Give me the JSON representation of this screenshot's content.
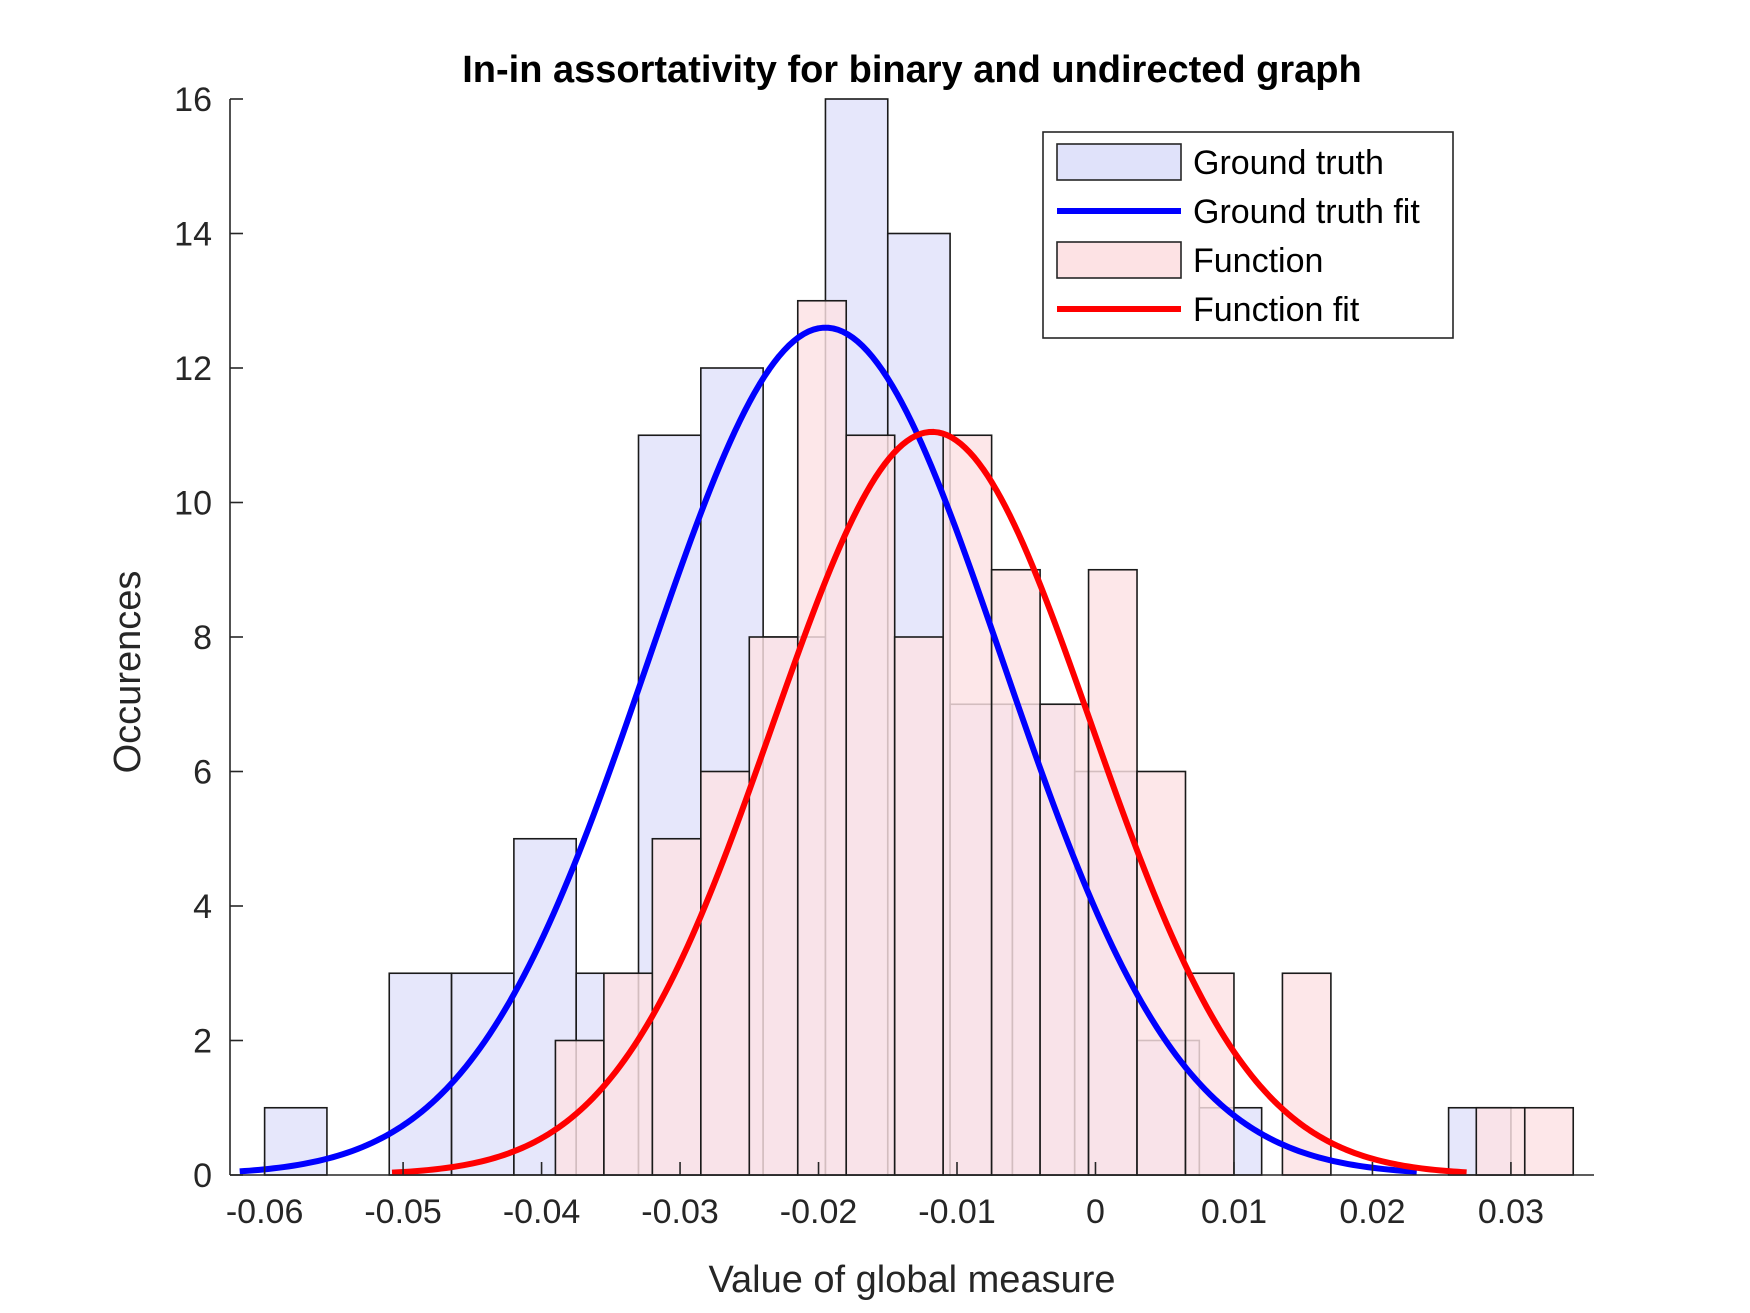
{
  "chart_data": {
    "type": "bar",
    "title": "In-in assortativity for binary and undirected graph",
    "xlabel": "Value of global measure",
    "ylabel": "Occurences",
    "xlim": [
      -0.0625,
      0.036
    ],
    "ylim": [
      0,
      16
    ],
    "xticks": [
      -0.06,
      -0.05,
      -0.04,
      -0.03,
      -0.02,
      -0.01,
      0,
      0.01,
      0.02,
      0.03
    ],
    "xtick_labels": [
      "-0.06",
      "-0.05",
      "-0.04",
      "-0.03",
      "-0.02",
      "-0.01",
      "0",
      "0.01",
      "0.02",
      "0.03"
    ],
    "yticks": [
      0,
      2,
      4,
      6,
      8,
      10,
      12,
      14,
      16
    ],
    "ytick_labels": [
      "0",
      "2",
      "4",
      "6",
      "8",
      "10",
      "12",
      "14",
      "16"
    ],
    "grid": false,
    "legend_position": "top-right",
    "series": [
      {
        "name": "Ground truth",
        "kind": "histogram",
        "color": "#e0e2fa",
        "bins": [
          {
            "x0": -0.06,
            "x1": -0.0555,
            "count": 1
          },
          {
            "x0": -0.051,
            "x1": -0.0465,
            "count": 3
          },
          {
            "x0": -0.0465,
            "x1": -0.042,
            "count": 3
          },
          {
            "x0": -0.042,
            "x1": -0.0375,
            "count": 5
          },
          {
            "x0": -0.0375,
            "x1": -0.033,
            "count": 3
          },
          {
            "x0": -0.033,
            "x1": -0.0285,
            "count": 11
          },
          {
            "x0": -0.0285,
            "x1": -0.024,
            "count": 12
          },
          {
            "x0": -0.024,
            "x1": -0.0195,
            "count": 8
          },
          {
            "x0": -0.0195,
            "x1": -0.015,
            "count": 16
          },
          {
            "x0": -0.015,
            "x1": -0.0105,
            "count": 14
          },
          {
            "x0": -0.0105,
            "x1": -0.006,
            "count": 7
          },
          {
            "x0": -0.006,
            "x1": -0.0015,
            "count": 7
          },
          {
            "x0": -0.0015,
            "x1": 0.003,
            "count": 6
          },
          {
            "x0": 0.003,
            "x1": 0.0075,
            "count": 2
          },
          {
            "x0": 0.0075,
            "x1": 0.012,
            "count": 1
          },
          {
            "x0": 0.0255,
            "x1": 0.03,
            "count": 1
          }
        ]
      },
      {
        "name": "Ground truth fit",
        "kind": "normal-fit",
        "color": "#0000ff",
        "mu": -0.0195,
        "sigma": 0.0128,
        "peak": 12.6,
        "x_range": [
          -0.0618,
          0.0232
        ]
      },
      {
        "name": "Function",
        "kind": "histogram",
        "color": "#fde2e4",
        "bins": [
          {
            "x0": -0.039,
            "x1": -0.0355,
            "count": 2
          },
          {
            "x0": -0.0355,
            "x1": -0.032,
            "count": 3
          },
          {
            "x0": -0.032,
            "x1": -0.0285,
            "count": 5
          },
          {
            "x0": -0.0285,
            "x1": -0.025,
            "count": 6
          },
          {
            "x0": -0.025,
            "x1": -0.0215,
            "count": 8
          },
          {
            "x0": -0.0215,
            "x1": -0.018,
            "count": 13
          },
          {
            "x0": -0.018,
            "x1": -0.0145,
            "count": 11
          },
          {
            "x0": -0.0145,
            "x1": -0.011,
            "count": 8
          },
          {
            "x0": -0.011,
            "x1": -0.0075,
            "count": 11
          },
          {
            "x0": -0.0075,
            "x1": -0.004,
            "count": 9
          },
          {
            "x0": -0.004,
            "x1": -0.0005,
            "count": 7
          },
          {
            "x0": -0.0005,
            "x1": 0.003,
            "count": 9
          },
          {
            "x0": 0.003,
            "x1": 0.0065,
            "count": 6
          },
          {
            "x0": 0.0065,
            "x1": 0.01,
            "count": 3
          },
          {
            "x0": 0.01,
            "x1": 0.0135,
            "count": 0
          },
          {
            "x0": 0.0135,
            "x1": 0.017,
            "count": 3
          },
          {
            "x0": 0.0275,
            "x1": 0.031,
            "count": 1
          },
          {
            "x0": 0.031,
            "x1": 0.0345,
            "count": 1
          }
        ]
      },
      {
        "name": "Function fit",
        "kind": "normal-fit",
        "color": "#ff0000",
        "mu": -0.0118,
        "sigma": 0.0115,
        "peak": 11.05,
        "x_range": [
          -0.0508,
          0.0268
        ]
      }
    ]
  }
}
